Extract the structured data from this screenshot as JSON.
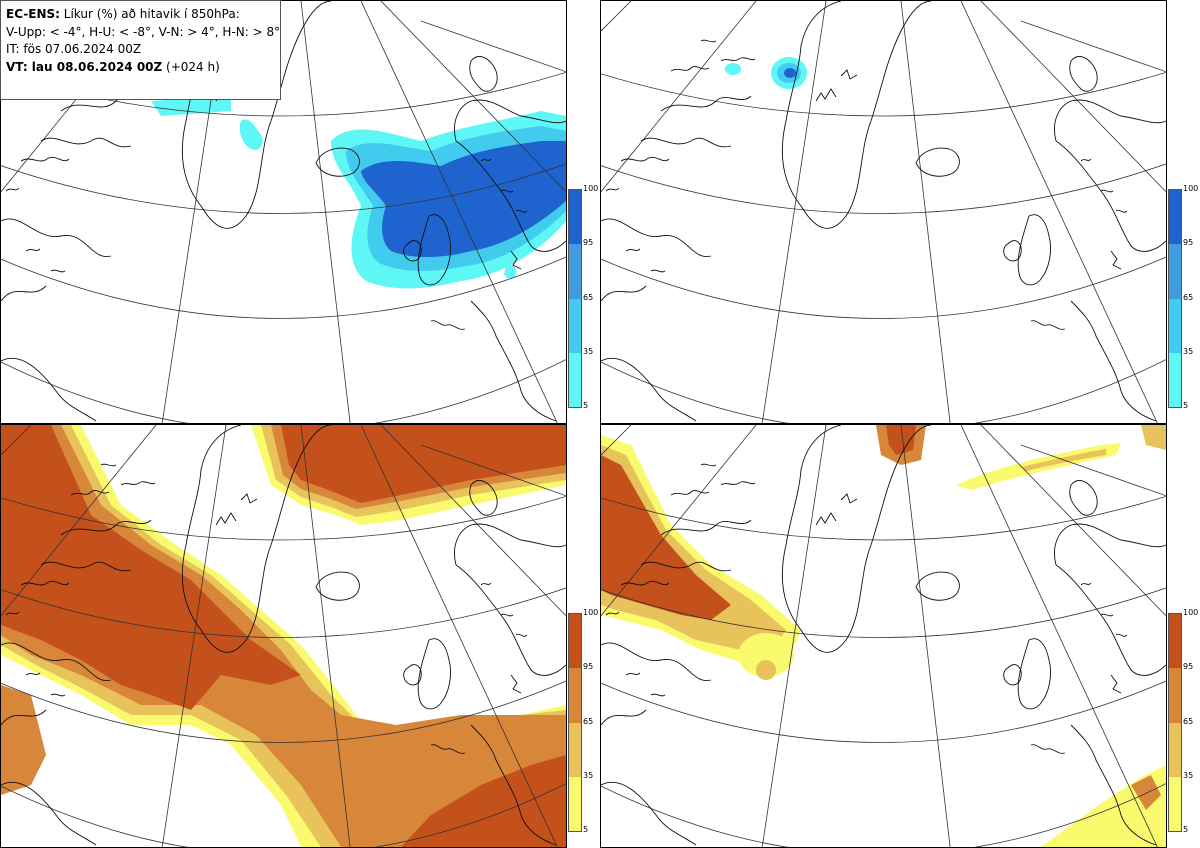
{
  "info": {
    "model": "EC-ENS:",
    "title_rest": " Líkur (%) að hitavik í 850hPa:",
    "legend_line": "V-Upp: < -4°, H-U: < -8°, V-N: > 4°, H-N: > 8°",
    "init_time": "IT: fös 07.06.2024 00Z",
    "valid_label": "VT: lau 08.06.2024 00Z",
    "valid_lead": " (+024 h)"
  },
  "colorbars": {
    "blue": {
      "colors": [
        "#5ff6f6",
        "#41cbef",
        "#3f9cdf",
        "#1f63cf"
      ],
      "ticks": [
        "100",
        "95",
        "65",
        "35",
        "5"
      ]
    },
    "orange": {
      "colors": [
        "#fafa6e",
        "#e8c25a",
        "#d8863a",
        "#c4501c"
      ],
      "ticks": [
        "100",
        "95",
        "65",
        "35",
        "5"
      ]
    }
  },
  "panels": [
    {
      "name": "V-Upp",
      "palette": "blue",
      "probability_field": "cold anomaly < -4°, high over Scandinavia / North Sea"
    },
    {
      "name": "H-U",
      "palette": "blue",
      "probability_field": "cold anomaly < -8°, small patch near Svalbard"
    },
    {
      "name": "V-N",
      "palette": "orange",
      "probability_field": "warm anomaly > 4°, large over Greenland / Canada / Atlantic"
    },
    {
      "name": "H-N",
      "palette": "orange",
      "probability_field": "warm anomaly > 8°, over Canada, Svalbard and Iberia"
    }
  ]
}
